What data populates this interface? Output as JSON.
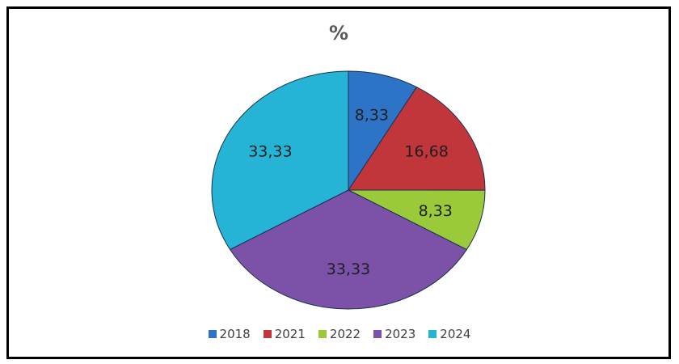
{
  "chart_data": {
    "type": "pie",
    "title": "%",
    "categories": [
      "2018",
      "2021",
      "2022",
      "2023",
      "2024"
    ],
    "values": [
      8.33,
      16.68,
      8.33,
      33.33,
      33.33
    ],
    "labels": [
      "8,33",
      "16,68",
      "8,33",
      "33,33",
      "33,33"
    ],
    "colors": [
      "#2e74c6",
      "#c0363a",
      "#9ac93a",
      "#7b52a8",
      "#25b3d6"
    ],
    "legend": "bottom"
  }
}
